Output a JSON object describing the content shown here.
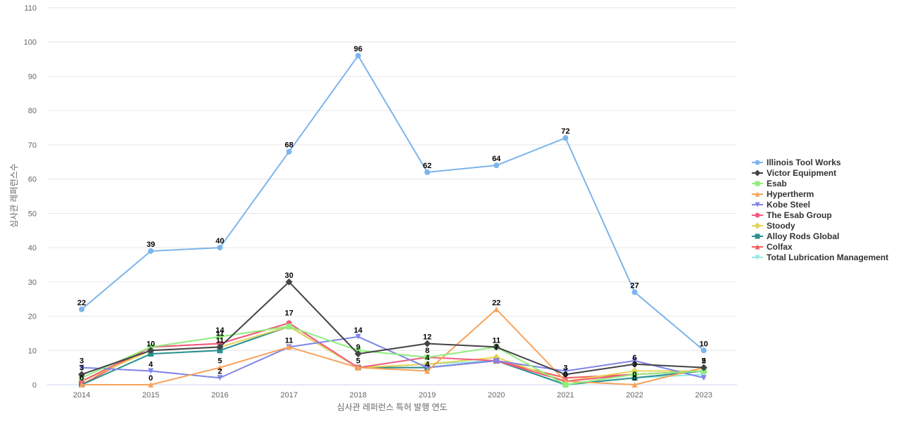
{
  "chart_data": {
    "type": "line",
    "title": "",
    "xlabel": "심사관 레퍼런스 특허 발행 연도",
    "ylabel": "심사관 레퍼런스수",
    "x": [
      "2014",
      "2015",
      "2016",
      "2017",
      "2018",
      "2019",
      "2020",
      "2021",
      "2022",
      "2023"
    ],
    "ylim": [
      0,
      110
    ],
    "yticks": [
      0,
      10,
      20,
      30,
      40,
      50,
      60,
      70,
      80,
      90,
      100,
      110
    ],
    "grid": true,
    "legend_position": "right",
    "series": [
      {
        "name": "Illinois Tool Works",
        "color": "#7cb5ec",
        "marker": "circle",
        "values": [
          22,
          39,
          40,
          68,
          96,
          62,
          64,
          72,
          27,
          10
        ],
        "labels": [
          "22",
          "39",
          "40",
          "68",
          "96",
          "62",
          "64",
          "72",
          "27",
          "10"
        ]
      },
      {
        "name": "Victor Equipment",
        "color": "#434348",
        "marker": "diamond",
        "values": [
          3,
          10,
          11,
          30,
          9,
          12,
          11,
          3,
          6,
          5
        ],
        "labels": [
          "3",
          "10",
          "11",
          "30",
          "9",
          "12",
          "11",
          "3",
          "6",
          "5"
        ]
      },
      {
        "name": "Esab",
        "color": "#90ed7d",
        "marker": "square",
        "values": [
          2,
          11,
          14,
          17,
          10,
          8,
          11,
          0,
          3,
          4
        ],
        "labels": [
          "",
          "",
          "14",
          "",
          "",
          "",
          "",
          "",
          "",
          ""
        ]
      },
      {
        "name": "Hypertherm",
        "color": "#f7a35c",
        "marker": "triangle",
        "values": [
          0,
          0,
          5,
          11,
          5,
          4,
          22,
          1,
          0,
          5
        ],
        "labels": [
          "0",
          "0",
          "5",
          "11",
          "5",
          "4",
          "22",
          "",
          "0",
          ""
        ]
      },
      {
        "name": "Kobe Steel",
        "color": "#8085e9",
        "marker": "triangle-down",
        "values": [
          5,
          4,
          2,
          11,
          14,
          5,
          7,
          4,
          7,
          2
        ],
        "labels": [
          "",
          "4",
          "2",
          "",
          "14",
          "",
          "",
          "",
          "",
          ""
        ]
      },
      {
        "name": "The Esab Group",
        "color": "#f15c80",
        "marker": "circle",
        "values": [
          1,
          11,
          12,
          18,
          5,
          8,
          7,
          1,
          3,
          4
        ],
        "labels": [
          "",
          "",
          "",
          "",
          "",
          "8",
          "",
          "",
          "",
          ""
        ]
      },
      {
        "name": "Stoody",
        "color": "#e4d354",
        "marker": "diamond",
        "values": [
          1,
          10,
          11,
          17,
          5,
          6,
          8,
          1,
          4,
          4
        ],
        "labels": [
          "",
          "",
          "",
          "",
          "",
          "",
          "",
          "",
          "",
          ""
        ]
      },
      {
        "name": "Alloy Rods Global",
        "color": "#2b908f",
        "marker": "square",
        "values": [
          0,
          9,
          10,
          17,
          5,
          5,
          7,
          0,
          2,
          4
        ],
        "labels": [
          "",
          "",
          "",
          "",
          "",
          "",
          "",
          "",
          "",
          ""
        ]
      },
      {
        "name": "Colfax",
        "color": "#f45b5b",
        "marker": "triangle",
        "values": [
          0,
          11,
          12,
          18,
          5,
          5,
          7,
          2,
          3,
          4
        ],
        "labels": [
          "",
          "",
          "",
          "",
          "",
          "",
          "",
          "",
          "",
          ""
        ]
      },
      {
        "name": "Total Lubrication Management",
        "color": "#91e8e1",
        "marker": "triangle-down",
        "values": [
          0,
          9,
          10,
          17,
          5,
          6,
          7,
          0,
          2,
          3
        ],
        "labels": [
          "",
          "",
          "",
          "",
          "",
          "",
          "",
          "",
          "",
          ""
        ]
      }
    ],
    "extra_labels": [
      {
        "x": "2014",
        "y": 5,
        "text": "3"
      },
      {
        "x": "2016",
        "y": 13,
        "text": "11"
      },
      {
        "x": "2017",
        "y": 19,
        "text": "17"
      },
      {
        "x": "2019",
        "y": 6,
        "text": "4"
      },
      {
        "x": "2020",
        "y": 9,
        "text": "7"
      },
      {
        "x": "2021",
        "y": 1,
        "text": "0"
      },
      {
        "x": "2022",
        "y": 4,
        "text": "3"
      },
      {
        "x": "2022",
        "y": 1,
        "text": "0"
      },
      {
        "x": "2023",
        "y": 5,
        "text": "2"
      }
    ]
  }
}
